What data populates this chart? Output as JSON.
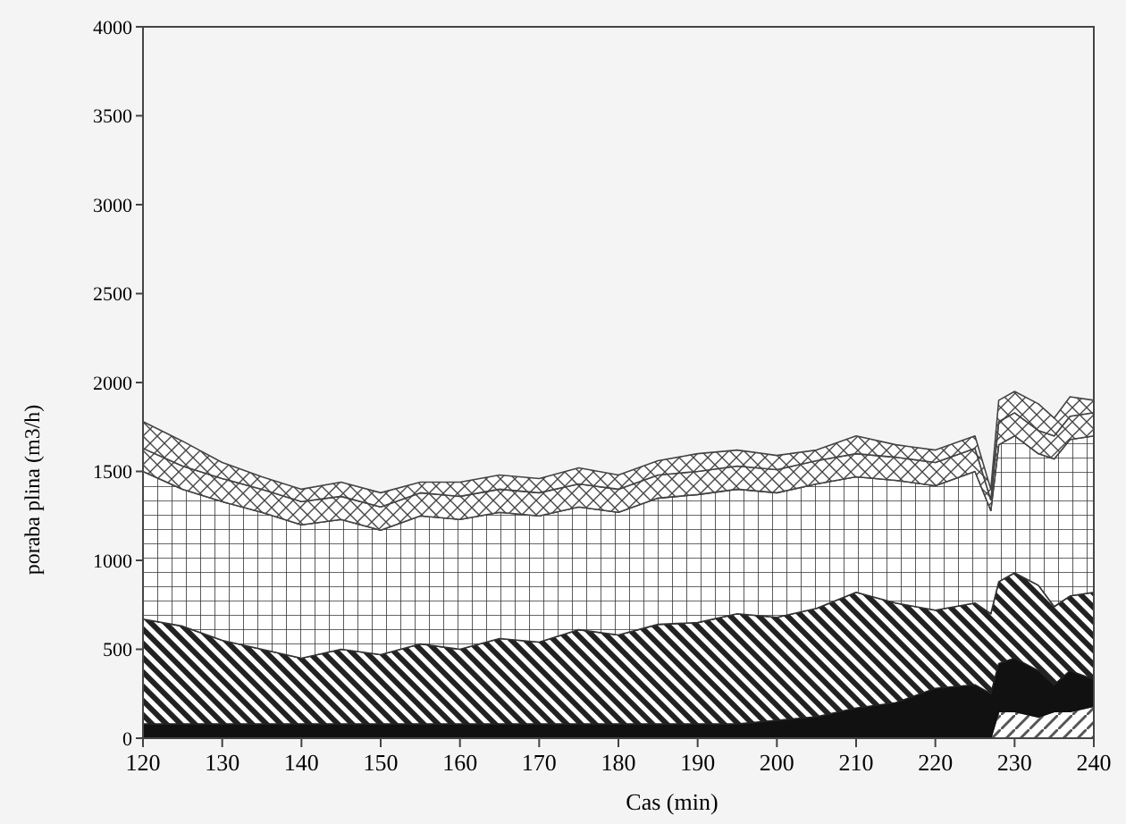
{
  "chart_data": {
    "type": "area",
    "stacked": true,
    "xlabel": "Cas (min)",
    "ylabel": "poraba plina (m3/h)",
    "x": [
      120,
      125,
      130,
      135,
      140,
      145,
      150,
      155,
      160,
      165,
      170,
      175,
      180,
      185,
      190,
      195,
      200,
      205,
      210,
      215,
      220,
      225,
      227,
      228,
      230,
      233,
      235,
      237,
      240
    ],
    "series": [
      {
        "color": "#555555",
        "values": [
          0,
          0,
          0,
          0,
          0,
          0,
          0,
          0,
          0,
          0,
          0,
          0,
          0,
          0,
          0,
          0,
          0,
          0,
          0,
          0,
          0,
          0,
          0,
          150,
          150,
          120,
          150,
          150,
          180
        ]
      },
      {
        "color": "#111111",
        "values": [
          80,
          80,
          80,
          80,
          80,
          80,
          80,
          80,
          80,
          80,
          80,
          80,
          80,
          80,
          80,
          80,
          100,
          120,
          170,
          200,
          280,
          300,
          250,
          270,
          300,
          260,
          150,
          230,
          150
        ]
      },
      {
        "color": "#222222",
        "values": [
          590,
          550,
          470,
          420,
          370,
          420,
          390,
          450,
          420,
          480,
          460,
          530,
          500,
          560,
          570,
          620,
          580,
          610,
          650,
          560,
          440,
          460,
          450,
          460,
          480,
          480,
          440,
          420,
          490
        ]
      },
      {
        "color": "#333333",
        "values": [
          830,
          770,
          780,
          770,
          750,
          730,
          700,
          720,
          730,
          710,
          710,
          690,
          690,
          710,
          720,
          700,
          700,
          700,
          650,
          690,
          700,
          740,
          580,
          770,
          770,
          740,
          830,
          880,
          880
        ]
      },
      {
        "color": "#444444",
        "values": [
          130,
          130,
          130,
          130,
          130,
          130,
          130,
          130,
          130,
          130,
          130,
          130,
          130,
          130,
          130,
          130,
          130,
          130,
          130,
          130,
          130,
          130,
          60,
          130,
          130,
          130,
          130,
          130,
          130
        ]
      },
      {
        "color": "#444444",
        "values": [
          150,
          140,
          90,
          70,
          70,
          80,
          80,
          60,
          80,
          80,
          80,
          90,
          80,
          80,
          100,
          90,
          80,
          60,
          100,
          70,
          70,
          70,
          60,
          120,
          120,
          150,
          100,
          110,
          70
        ]
      }
    ],
    "xlim": [
      120,
      240
    ],
    "xticks": [
      120,
      130,
      140,
      150,
      160,
      170,
      180,
      190,
      200,
      210,
      220,
      230,
      240
    ],
    "ylim": [
      0,
      4000
    ],
    "yticks": [
      0,
      500,
      1000,
      1500,
      2000,
      2500,
      3000,
      3500,
      4000
    ],
    "grid": false
  }
}
